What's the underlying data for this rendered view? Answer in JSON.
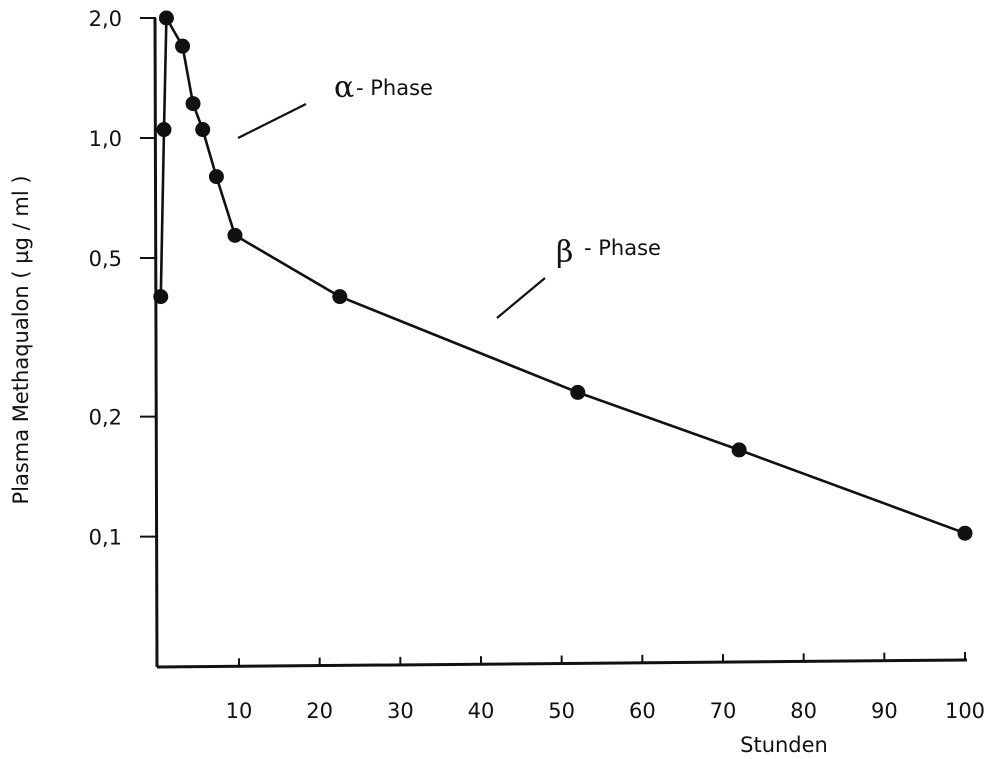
{
  "chart_data": {
    "type": "line",
    "title": "",
    "xlabel": "Stunden",
    "ylabel": "Plasma Methaqualon ( µg / ml )",
    "x_scale": "linear",
    "y_scale": "log",
    "xlim": [
      0,
      100
    ],
    "ylim": [
      0.05,
      2.0
    ],
    "grid": false,
    "x_ticks": [
      10,
      20,
      30,
      40,
      50,
      60,
      70,
      80,
      90,
      100
    ],
    "x_tick_labels": [
      "10",
      "20",
      "30",
      "40",
      "50",
      "60",
      "70",
      "80",
      "90",
      "100"
    ],
    "y_ticks": [
      2.0,
      1.0,
      0.5,
      0.2,
      0.1
    ],
    "y_tick_labels": [
      "2,0",
      "1,0",
      "0,5",
      "0,2",
      "0,1"
    ],
    "series": [
      {
        "color": "#111111",
        "points": [
          {
            "x": 0.3,
            "y": 0.4
          },
          {
            "x": 0.7,
            "y": 1.05
          },
          {
            "x": 1.0,
            "y": 2.0
          },
          {
            "x": 3.0,
            "y": 1.7
          },
          {
            "x": 4.3,
            "y": 1.22
          },
          {
            "x": 5.5,
            "y": 1.05
          },
          {
            "x": 7.2,
            "y": 0.8
          },
          {
            "x": 9.5,
            "y": 0.57
          },
          {
            "x": 22.5,
            "y": 0.4
          },
          {
            "x": 52.0,
            "y": 0.23
          },
          {
            "x": 72.0,
            "y": 0.165
          },
          {
            "x": 100.0,
            "y": 0.102
          }
        ]
      }
    ],
    "annotations": [
      {
        "greek": "α",
        "text": "- Phase"
      },
      {
        "greek": "β",
        "text": "- Phase"
      }
    ]
  }
}
